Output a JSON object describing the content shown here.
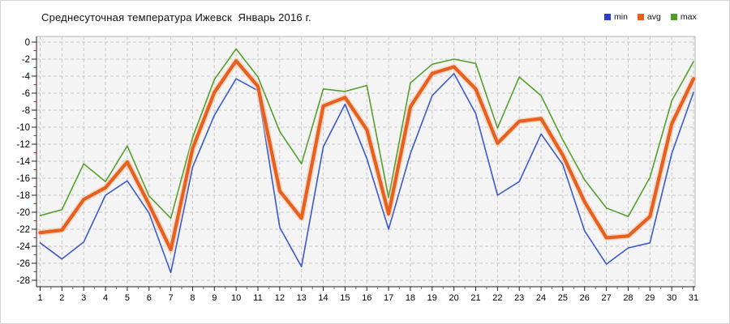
{
  "title": "Среднесуточная температура Ижевск  Январь 2016 г.",
  "legend": {
    "items": [
      {
        "label": "min",
        "color": "#2b3fd0"
      },
      {
        "label": "avg",
        "color": "#e8601f"
      },
      {
        "label": "max",
        "color": "#4ba121"
      }
    ],
    "position": "top-right"
  },
  "chart_data": {
    "type": "line",
    "title": "Среднесуточная температура Ижевск  Январь 2016 г.",
    "xlabel": "",
    "ylabel": "",
    "x": [
      1,
      2,
      3,
      4,
      5,
      6,
      7,
      8,
      9,
      10,
      11,
      12,
      13,
      14,
      15,
      16,
      17,
      18,
      19,
      20,
      21,
      22,
      23,
      24,
      25,
      26,
      27,
      28,
      29,
      30,
      31
    ],
    "x_tick_labels": [
      "1",
      "2",
      "3",
      "4",
      "5",
      "6",
      "7",
      "8",
      "9",
      "10",
      "11",
      "12",
      "13",
      "14",
      "15",
      "16",
      "17",
      "18",
      "19",
      "20",
      "21",
      "22",
      "23",
      "24",
      "25",
      "26",
      "27",
      "28",
      "29",
      "30",
      "31"
    ],
    "y_ticks": [
      0,
      -2,
      -4,
      -6,
      -8,
      -10,
      -12,
      -14,
      -16,
      -18,
      -20,
      -22,
      -24,
      -26,
      -28
    ],
    "y_tick_labels": [
      "0",
      "-2",
      "-4",
      "-6",
      "-8",
      "-10",
      "-12",
      "-14",
      "-16",
      "-18",
      "-20",
      "-22",
      "-24",
      "-26",
      "-28"
    ],
    "ylim": [
      -28,
      0
    ],
    "grid": true,
    "legend_position": "top-right",
    "series": [
      {
        "name": "min",
        "color": "#3b5bcc",
        "width": 1.6,
        "values": [
          -23.6,
          -25.5,
          -23.5,
          -18.0,
          -16.3,
          -20.1,
          -27.1,
          -14.7,
          -8.6,
          -4.3,
          -5.7,
          -21.8,
          -26.4,
          -12.3,
          -7.3,
          -13.7,
          -22.0,
          -13.1,
          -6.3,
          -3.7,
          -8.4,
          -18.0,
          -16.4,
          -10.8,
          -14.4,
          -22.2,
          -26.1,
          -24.2,
          -23.6,
          -13.1,
          -5.9
        ]
      },
      {
        "name": "avg",
        "color": "#e8601f",
        "width": 4.2,
        "halo": "#f7c4a2",
        "values": [
          -22.4,
          -22.1,
          -18.5,
          -17.1,
          -14.1,
          -19.1,
          -24.4,
          -12.5,
          -5.9,
          -2.2,
          -5.2,
          -17.5,
          -20.7,
          -7.5,
          -6.5,
          -10.3,
          -20.2,
          -7.6,
          -3.7,
          -2.9,
          -5.5,
          -11.9,
          -9.3,
          -9.0,
          -13.3,
          -18.8,
          -23.0,
          -22.8,
          -20.5,
          -9.6,
          -4.3
        ]
      },
      {
        "name": "max",
        "color": "#55a02e",
        "width": 1.6,
        "values": [
          -20.4,
          -19.7,
          -14.3,
          -16.4,
          -12.2,
          -18.1,
          -20.7,
          -11.2,
          -4.4,
          -0.8,
          -4.1,
          -10.5,
          -14.3,
          -5.5,
          -5.8,
          -5.1,
          -18.3,
          -4.8,
          -2.6,
          -2.0,
          -2.5,
          -10.1,
          -4.1,
          -6.3,
          -11.5,
          -16.2,
          -19.5,
          -20.5,
          -15.9,
          -6.9,
          -2.3
        ]
      }
    ],
    "colors": {
      "plot_background": "#f4f4f4",
      "gridline": "#c9c9c9",
      "axis": "#222222",
      "minor_tick_red": "#c03028",
      "plot_border": "#b5b5b5"
    }
  }
}
